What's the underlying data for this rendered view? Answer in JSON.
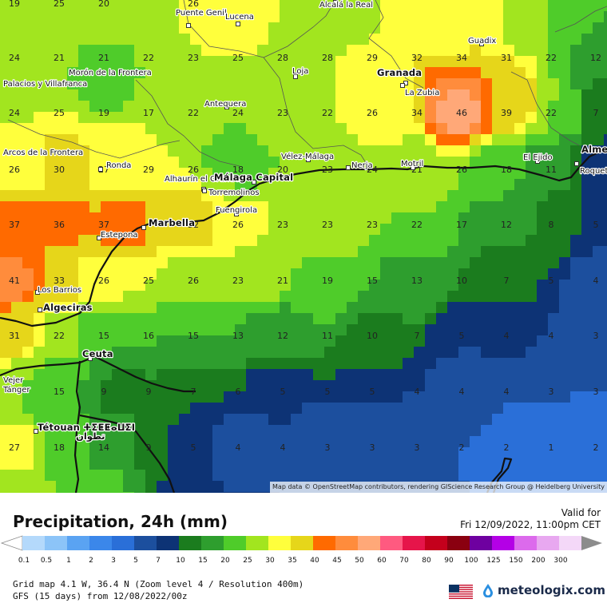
{
  "title": "Precipitation, 24h (mm)",
  "valid_label": "Valid for",
  "valid_time": "Fri 12/09/2022, 11:00pm CET",
  "attribution": "Map data © OpenStreetMap contributors, rendering GIScience Research Group @ Heidelberg University",
  "info_line1": "Grid map 4.1 W, 36.4 N (Zoom level 4 / Resolution 400m)",
  "info_line2": "GFS (15 days) from  12/08/2022/00z",
  "brand": "meteologix.com",
  "legend": {
    "ticks": [
      "0.1",
      "0.5",
      "1",
      "2",
      "3",
      "5",
      "7",
      "10",
      "15",
      "20",
      "25",
      "30",
      "35",
      "40",
      "45",
      "50",
      "60",
      "70",
      "80",
      "90",
      "100",
      "125",
      "150",
      "200",
      "300"
    ],
    "colors": [
      "#b4d9fb",
      "#8cc4f8",
      "#5aa3f2",
      "#3b87ea",
      "#2a6fd8",
      "#1c4f9e",
      "#0d3375",
      "#1b7c1e",
      "#2e9e2e",
      "#4fcc2a",
      "#a2e51f",
      "#ffff3c",
      "#e6d61a",
      "#ff6a00",
      "#ff8c3c",
      "#ffa878",
      "#ff5a80",
      "#e6154a",
      "#c4001c",
      "#8a0010",
      "#6e00a0",
      "#b400e6",
      "#dc6aec",
      "#e8a8f0",
      "#f4d8f8",
      "#f8ecf8"
    ]
  },
  "cities": [
    {
      "name": "Puente Genil"
    },
    {
      "name": "Lucena"
    },
    {
      "name": "Alcalá la Real"
    },
    {
      "name": "Guadix"
    },
    {
      "name": "Morón de la Frontera"
    },
    {
      "name": "Palacios y Villafranca"
    },
    {
      "name": "Loja"
    },
    {
      "name": "Granada"
    },
    {
      "name": "La Zubia"
    },
    {
      "name": "Antequera"
    },
    {
      "name": "Vélez-Málaga"
    },
    {
      "name": "Nerja"
    },
    {
      "name": "Motril"
    },
    {
      "name": "El Ejido"
    },
    {
      "name": "Almería"
    },
    {
      "name": "Roquetas de Mar"
    },
    {
      "name": "Ronda"
    },
    {
      "name": "Alhaurín el Grande"
    },
    {
      "name": "Málaga Capital"
    },
    {
      "name": "Torremolinos"
    },
    {
      "name": "Fuengirola"
    },
    {
      "name": "Marbella"
    },
    {
      "name": "Estepona"
    },
    {
      "name": "Los Barrios"
    },
    {
      "name": "Algeciras"
    },
    {
      "name": "Ceuta"
    },
    {
      "name": "Tétouan ⵜⵉⵟⵟⴰⵡⵉⵏ"
    },
    {
      "name": "تطوان"
    },
    {
      "name": "Vejer"
    },
    {
      "name": "Arcos de la Frontera"
    },
    {
      "name": "Tánger"
    }
  ],
  "grid_values": [
    [
      "19",
      "25",
      "20",
      "",
      "26",
      "",
      "",
      "",
      "",
      "",
      "",
      "",
      "",
      ""
    ],
    [
      "24",
      "21",
      "21",
      "22",
      "23",
      "25",
      "28",
      "28",
      "29",
      "32",
      "34",
      "31",
      "22",
      "12"
    ],
    [
      "24",
      "25",
      "19",
      "17",
      "22",
      "24",
      "23",
      "22",
      "26",
      "34",
      "46",
      "39",
      "22",
      "7"
    ],
    [
      "26",
      "30",
      "27",
      "29",
      "26",
      "18",
      "20",
      "23",
      "24",
      "21",
      "26",
      "18",
      "11",
      ""
    ],
    [
      "37",
      "36",
      "37",
      "",
      "32",
      "26",
      "23",
      "23",
      "23",
      "22",
      "17",
      "12",
      "8",
      "5"
    ],
    [
      "41",
      "33",
      "26",
      "25",
      "26",
      "23",
      "21",
      "19",
      "15",
      "13",
      "10",
      "7",
      "5",
      "4"
    ],
    [
      "31",
      "22",
      "15",
      "16",
      "15",
      "13",
      "12",
      "11",
      "10",
      "7",
      "5",
      "4",
      "4",
      "3"
    ],
    [
      "",
      "",
      "",
      "",
      "",
      "",
      "",
      "",
      "",
      "",
      "",
      "",
      "",
      ""
    ],
    [
      "",
      "15",
      "9",
      "9",
      "7",
      "6",
      "5",
      "5",
      "5",
      "4",
      "4",
      "4",
      "3",
      "3"
    ],
    [
      "",
      "",
      "",
      "",
      "",
      "",
      "",
      "",
      "",
      "",
      "",
      "",
      "",
      ""
    ],
    [
      "27",
      "18",
      "14",
      "9",
      "5",
      "4",
      "4",
      "3",
      "3",
      "3",
      "2",
      "2",
      "1",
      "2"
    ]
  ]
}
